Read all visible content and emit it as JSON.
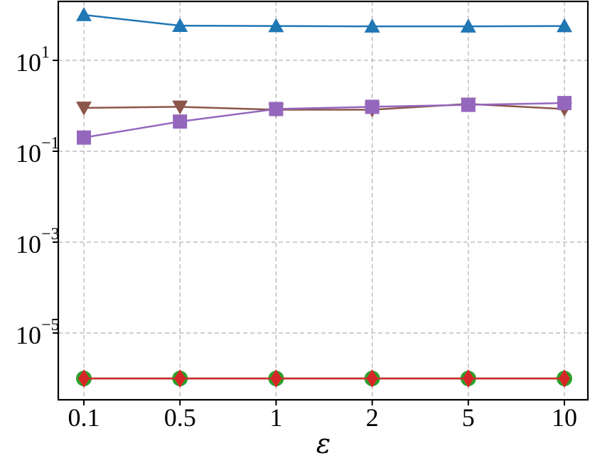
{
  "chart_data": {
    "type": "line",
    "xlabel": "ε",
    "ylabel": "",
    "title": "",
    "x_scale": "categorical",
    "y_scale": "log",
    "categories": [
      "0.1",
      "0.5",
      "1",
      "2",
      "5",
      "10"
    ],
    "ylim": [
      5e-07,
      200
    ],
    "y_ticks": [
      {
        "base": "10",
        "exp": "1",
        "value": 10
      },
      {
        "base": "10",
        "exp": "−1",
        "value": 0.1
      },
      {
        "base": "10",
        "exp": "−3",
        "value": 0.001
      },
      {
        "base": "10",
        "exp": "−5",
        "value": 1e-05
      }
    ],
    "grid": true,
    "legend": "none",
    "series": [
      {
        "marker": "triangle-up",
        "color": "#1f77b4",
        "values": [
          100,
          58,
          57,
          56,
          56,
          57
        ]
      },
      {
        "marker": "triangle-down",
        "color": "#8c564b",
        "values": [
          0.9,
          0.95,
          0.82,
          0.82,
          1.1,
          0.85
        ]
      },
      {
        "marker": "square",
        "color": "#9467bd",
        "values": [
          0.2,
          0.45,
          0.85,
          0.95,
          1.05,
          1.15
        ]
      },
      {
        "marker": "circle",
        "color": "#2ca02c",
        "values": [
          1e-06,
          1e-06,
          1e-06,
          1e-06,
          1e-06,
          1e-06
        ]
      },
      {
        "marker": "diamond",
        "color": "#d62728",
        "values": [
          1e-06,
          1e-06,
          1e-06,
          1e-06,
          1e-06,
          1e-06
        ]
      }
    ]
  }
}
